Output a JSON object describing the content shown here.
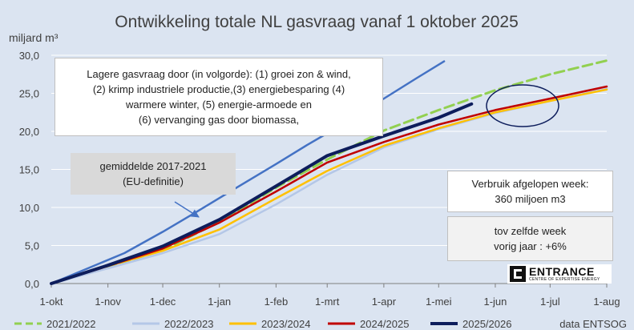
{
  "chart_data": {
    "type": "line",
    "title": "Ontwikkeling totale NL gasvraag vanaf 1 oktober 2025",
    "ylabel": "miljard m³",
    "ylim": [
      0,
      30
    ],
    "yticks": [
      "0,0",
      "5,0",
      "10,0",
      "15,0",
      "20,0",
      "25,0",
      "30,0"
    ],
    "xlim_days": [
      0,
      304
    ],
    "xticks": [
      "1-okt",
      "1-nov",
      "1-dec",
      "1-jan",
      "1-feb",
      "1-mrt",
      "1-apr",
      "1-mei",
      "1-jun",
      "1-jul",
      "1-aug"
    ],
    "xtick_days": [
      0,
      31,
      61,
      92,
      123,
      151,
      182,
      212,
      243,
      273,
      304
    ],
    "grid": true,
    "legend_position": "bottom",
    "series": [
      {
        "name": "gemiddelde 2017-2021 (EU-definitie)",
        "color": "#4472c4",
        "dash": false,
        "width": 2.5,
        "in_legend": false,
        "x": [
          0,
          20,
          40,
          61,
          80,
          100,
          123,
          140,
          160,
          180,
          200,
          215
        ],
        "y": [
          0,
          2.0,
          4.0,
          6.8,
          9.5,
          12.4,
          15.7,
          18.2,
          21.0,
          24.0,
          27.0,
          29.2
        ]
      },
      {
        "name": "2021/2022",
        "color": "#92d050",
        "dash": true,
        "width": 3,
        "x": [
          0,
          31,
          61,
          92,
          123,
          151,
          182,
          212,
          243,
          273,
          304
        ],
        "y": [
          0,
          2.2,
          4.4,
          8.1,
          12.6,
          16.3,
          20.1,
          22.8,
          25.4,
          27.5,
          29.3
        ]
      },
      {
        "name": "2022/2023",
        "color": "#b4c7e7",
        "dash": false,
        "width": 2.5,
        "x": [
          0,
          31,
          61,
          92,
          123,
          151,
          182,
          212,
          243,
          273,
          304
        ],
        "y": [
          0,
          2.0,
          4.0,
          6.5,
          10.4,
          14.3,
          17.9,
          20.3,
          22.4,
          24.0,
          25.6
        ]
      },
      {
        "name": "2023/2024",
        "color": "#ffc000",
        "dash": false,
        "width": 2.5,
        "x": [
          0,
          31,
          61,
          92,
          123,
          151,
          182,
          212,
          243,
          273,
          304
        ],
        "y": [
          0,
          2.3,
          4.3,
          7.1,
          11.2,
          14.8,
          18.1,
          20.4,
          22.5,
          24.0,
          25.5
        ]
      },
      {
        "name": "2024/2025",
        "color": "#c00000",
        "dash": false,
        "width": 2.5,
        "x": [
          0,
          31,
          61,
          92,
          123,
          151,
          182,
          212,
          243,
          273,
          304
        ],
        "y": [
          0,
          2.3,
          4.6,
          8.0,
          12.1,
          15.9,
          18.6,
          20.9,
          22.8,
          24.3,
          25.9
        ]
      },
      {
        "name": "2025/2026",
        "color": "#0d1d5c",
        "dash": false,
        "width": 4,
        "x": [
          0,
          31,
          61,
          92,
          123,
          151,
          182,
          212,
          230
        ],
        "y": [
          0,
          2.4,
          4.9,
          8.4,
          12.8,
          16.8,
          19.4,
          21.8,
          23.6
        ]
      }
    ]
  },
  "annotations": {
    "reasons_lines": [
      "Lagere gasvraag door (in volgorde): (1) groei zon & wind,",
      "(2) krimp industriele productie,(3) energiebesparing (4)",
      "warmere winter, (5) energie-armoede en",
      "(6) vervanging gas door biomassa,"
    ],
    "average_lines": [
      "gemiddelde 2017-2021",
      "(EU-definitie)"
    ],
    "week_lines": [
      "Verbruik afgelopen week:",
      "360 miljoen m3"
    ],
    "compare_lines": [
      "tov zelfde week",
      "vorig jaar : +6%"
    ]
  },
  "logo": {
    "name": "ENTRANCE",
    "tagline": "CENTRE OF EXPERTISE ENERGY"
  },
  "source": "data ENTSOG",
  "colors": {
    "background": "#dbe4f1",
    "grid": "#ffffff",
    "axis": "#7f7f7f",
    "ellipse": "#0d1d5c"
  }
}
